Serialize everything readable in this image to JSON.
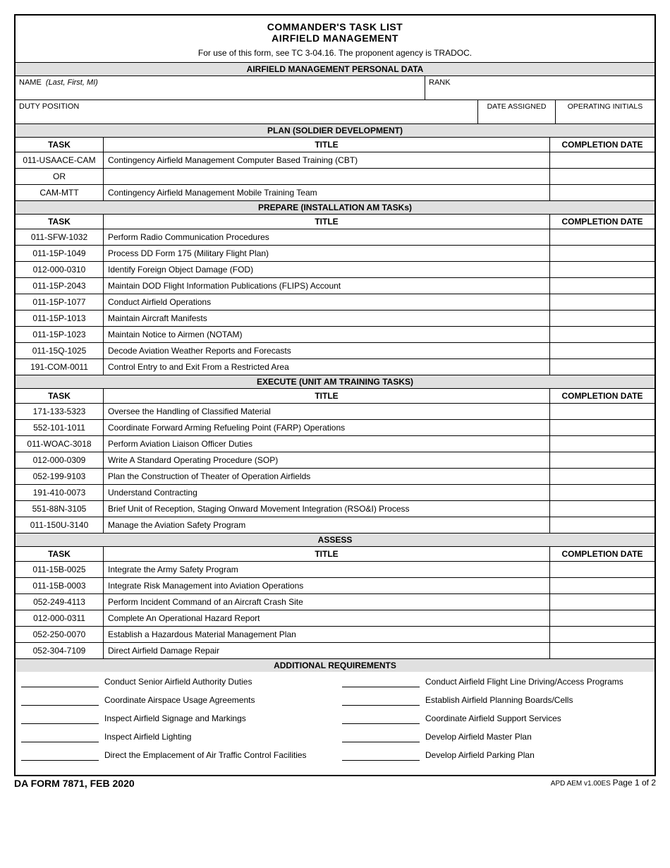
{
  "header": {
    "title1": "COMMANDER'S TASK LIST",
    "title2": "AIRFIELD MANAGEMENT",
    "subtitle": "For use of this form, see TC 3-04.16. The proponent agency is TRADOC."
  },
  "personal": {
    "section_title": "AIRFIELD MANAGEMENT PERSONAL DATA",
    "name_label": "NAME",
    "name_hint": "(Last, First, MI)",
    "rank_label": "RANK",
    "duty_label": "DUTY POSITION",
    "date_assigned_label": "DATE ASSIGNED",
    "initials_label": "OPERATING INITIALS"
  },
  "plan": {
    "section_title": "PLAN (SOLDIER DEVELOPMENT)",
    "task_header": "TASK",
    "title_header": "TITLE",
    "date_header": "COMPLETION DATE",
    "rows": [
      {
        "task": "011-USAACE-CAM",
        "title": "Contingency Airfield Management Computer Based Training (CBT)"
      },
      {
        "task": "OR",
        "title": "",
        "is_or": true
      },
      {
        "task": "CAM-MTT",
        "title": "Contingency Airfield Management Mobile Training Team"
      }
    ]
  },
  "prepare": {
    "section_title": "PREPARE (INSTALLATION AM TASKs)",
    "task_header": "TASK",
    "title_header": "TITLE",
    "date_header": "COMPLETION DATE",
    "rows": [
      {
        "task": "011-SFW-1032",
        "title": "Perform Radio Communication Procedures"
      },
      {
        "task": "011-15P-1049",
        "title": "Process DD Form 175 (Military Flight Plan)"
      },
      {
        "task": "012-000-0310",
        "title": "Identify Foreign Object Damage (FOD)"
      },
      {
        "task": "011-15P-2043",
        "title": "Maintain DOD Flight Information Publications (FLIPS) Account"
      },
      {
        "task": "011-15P-1077",
        "title": "Conduct Airfield Operations"
      },
      {
        "task": "011-15P-1013",
        "title": "Maintain Aircraft Manifests"
      },
      {
        "task": "011-15P-1023",
        "title": "Maintain Notice to Airmen (NOTAM)"
      },
      {
        "task": "011-15Q-1025",
        "title": "Decode Aviation Weather Reports and Forecasts"
      },
      {
        "task": "191-COM-0011",
        "title": "Control Entry to and Exit From a Restricted Area"
      }
    ]
  },
  "execute": {
    "section_title": "EXECUTE (UNIT AM TRAINING TASKS)",
    "task_header": "TASK",
    "title_header": "TITLE",
    "date_header": "COMPLETION DATE",
    "rows": [
      {
        "task": "171-133-5323",
        "title": "Oversee the Handling of Classified Material"
      },
      {
        "task": "552-101-1011",
        "title": "Coordinate Forward Arming Refueling Point (FARP) Operations"
      },
      {
        "task": "011-WOAC-3018",
        "title": "Perform Aviation Liaison Officer Duties"
      },
      {
        "task": "012-000-0309",
        "title": "Write A Standard Operating Procedure (SOP)"
      },
      {
        "task": "052-199-9103",
        "title": "Plan the Construction of Theater of Operation Airfields"
      },
      {
        "task": "191-410-0073",
        "title": "Understand Contracting"
      },
      {
        "task": "551-88N-3105",
        "title": "Brief Unit of Reception, Staging Onward Movement Integration (RSO&I) Process"
      },
      {
        "task": "011-150U-3140",
        "title": "Manage the Aviation Safety Program"
      }
    ]
  },
  "assess": {
    "section_title": "ASSESS",
    "task_header": "TASK",
    "title_header": "TITLE",
    "date_header": "COMPLETION DATE",
    "rows": [
      {
        "task": "011-15B-0025",
        "title": "Integrate the Army Safety Program"
      },
      {
        "task": "011-15B-0003",
        "title": "Integrate Risk Management into Aviation Operations"
      },
      {
        "task": "052-249-4113",
        "title": "Perform Incident Command of an Aircraft Crash Site"
      },
      {
        "task": "012-000-0311",
        "title": "Complete An Operational Hazard Report"
      },
      {
        "task": "052-250-0070",
        "title": "Establish a Hazardous Material Management Plan"
      },
      {
        "task": "052-304-7109",
        "title": "Direct Airfield Damage Repair"
      }
    ]
  },
  "additional": {
    "section_title": "ADDITIONAL REQUIREMENTS",
    "items": [
      [
        "Conduct Senior Airfield Authority Duties",
        "Conduct Airfield Flight Line Driving/Access Programs"
      ],
      [
        "Coordinate Airspace Usage Agreements",
        "Establish Airfield Planning Boards/Cells"
      ],
      [
        "Inspect Airfield Signage and Markings",
        "Coordinate Airfield Support Services"
      ],
      [
        "Inspect Airfield Lighting",
        "Develop Airfield Master Plan"
      ],
      [
        "Direct the Emplacement of Air Traffic Control Facilities",
        "Develop Airfield Parking Plan"
      ]
    ]
  },
  "footer": {
    "left": "DA FORM 7871, FEB 2020",
    "right_version": "APD AEM v1.00ES",
    "right_page": "Page 1 of 2"
  }
}
